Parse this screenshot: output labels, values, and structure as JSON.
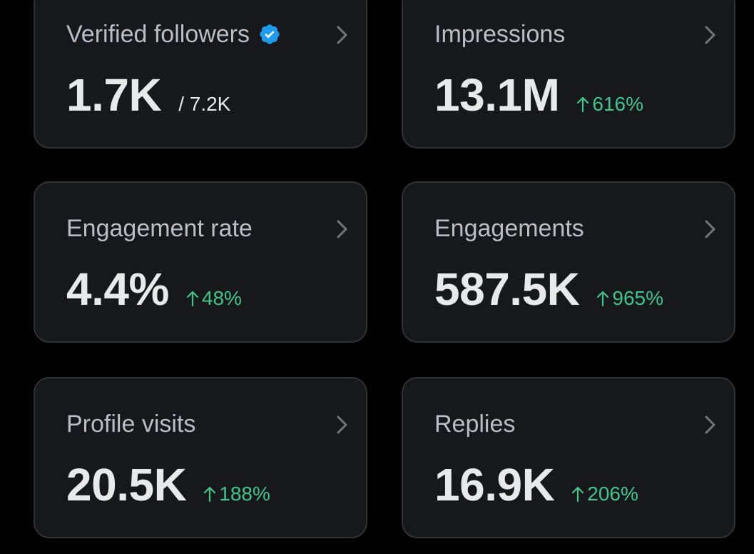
{
  "colors": {
    "background": "#000000",
    "card_bg": "#16181c",
    "card_border": "#2f3336",
    "label": "#b9bec4",
    "value": "#e7e9ea",
    "positive_delta": "#3ec58a",
    "verified_badge": "#1d9bf0"
  },
  "cards": [
    {
      "label": "Verified followers",
      "value": "1.7K",
      "sub_total": "/ 7.2K",
      "badge_icon": "verified-badge-icon",
      "chevron_icon": "chevron-right-icon"
    },
    {
      "label": "Impressions",
      "value": "13.1M",
      "delta": "616%",
      "delta_icon": "arrow-up-icon",
      "chevron_icon": "chevron-right-icon"
    },
    {
      "label": "Engagement rate",
      "value": "4.4%",
      "delta": "48%",
      "delta_icon": "arrow-up-icon",
      "chevron_icon": "chevron-right-icon"
    },
    {
      "label": "Engagements",
      "value": "587.5K",
      "delta": "965%",
      "delta_icon": "arrow-up-icon",
      "chevron_icon": "chevron-right-icon"
    },
    {
      "label": "Profile visits",
      "value": "20.5K",
      "delta": "188%",
      "delta_icon": "arrow-up-icon",
      "chevron_icon": "chevron-right-icon"
    },
    {
      "label": "Replies",
      "value": "16.9K",
      "delta": "206%",
      "delta_icon": "arrow-up-icon",
      "chevron_icon": "chevron-right-icon"
    }
  ]
}
